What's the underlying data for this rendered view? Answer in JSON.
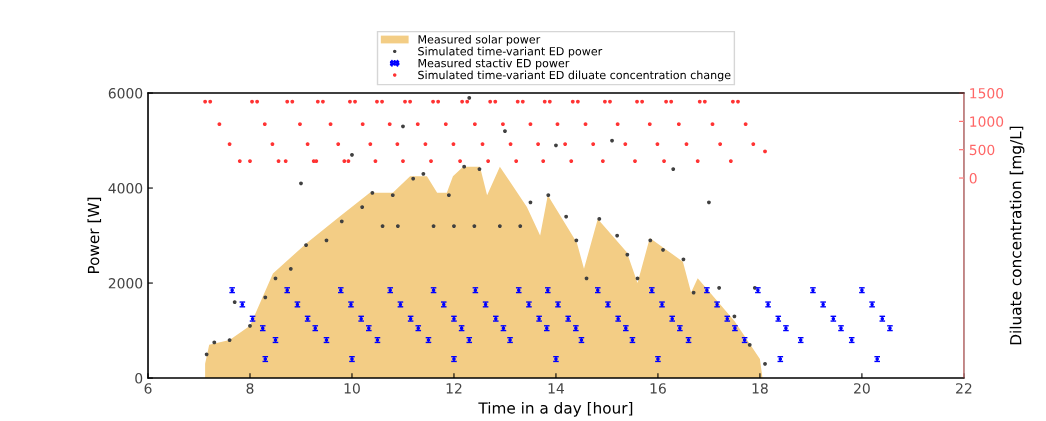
{
  "chart_data": {
    "type": "scatter",
    "xlabel": "Time in a day [hour]",
    "ylabel": "Power [W]",
    "y2label": "Diluate concentration [mg/L]",
    "xlim": [
      6,
      22
    ],
    "xticks": [
      6,
      8,
      10,
      12,
      14,
      16,
      18,
      20,
      22
    ],
    "ylim": [
      0,
      6000
    ],
    "yticks": [
      0,
      2000,
      4000,
      6000
    ],
    "y2lim": [
      -3530,
      1500
    ],
    "y2ticks": [
      0,
      500,
      1000,
      1500
    ],
    "grid": false,
    "legend": "top",
    "series": [
      {
        "name": "Measured solar power",
        "type": "area",
        "color": "#f3cd85",
        "x": [
          7.12,
          7.2,
          7.6,
          8.0,
          8.45,
          9.12,
          9.76,
          10.35,
          10.8,
          11.14,
          11.47,
          11.67,
          11.86,
          11.98,
          12.18,
          12.51,
          12.65,
          12.9,
          13.43,
          13.69,
          13.84,
          14.41,
          14.55,
          14.82,
          15.39,
          15.6,
          15.84,
          16.49,
          16.65,
          16.78,
          17.5,
          18.0,
          18.05
        ],
        "values": [
          300,
          700,
          800,
          1100,
          2200,
          2850,
          3400,
          3900,
          3900,
          4250,
          4250,
          3900,
          3900,
          4250,
          4450,
          4450,
          3850,
          4450,
          3600,
          3000,
          3850,
          2850,
          2300,
          3350,
          2650,
          2000,
          2950,
          2450,
          1800,
          2100,
          1200,
          400,
          0
        ]
      },
      {
        "name": "Simulated time-variant ED power",
        "marker": "circle",
        "color": "#404040",
        "x": [
          7.15,
          7.3,
          7.6,
          7.7,
          8.0,
          8.3,
          8.5,
          8.8,
          9.0,
          9.1,
          9.5,
          9.8,
          10.0,
          10.2,
          10.4,
          10.6,
          10.8,
          10.9,
          11.0,
          11.2,
          11.4,
          11.6,
          11.9,
          12.0,
          12.2,
          12.3,
          12.4,
          12.5,
          12.9,
          13.0,
          13.3,
          13.5,
          13.85,
          14.0,
          14.2,
          14.4,
          14.6,
          14.85,
          15.1,
          15.2,
          15.4,
          15.6,
          15.85,
          16.1,
          16.3,
          16.5,
          16.7,
          17.0,
          17.2,
          17.5,
          17.8,
          17.9,
          18.1
        ],
        "values": [
          500,
          750,
          800,
          1600,
          1100,
          1700,
          2100,
          2300,
          4100,
          2800,
          2900,
          3300,
          4700,
          3600,
          3900,
          3200,
          3850,
          3200,
          5300,
          4200,
          4300,
          3200,
          3850,
          3200,
          4450,
          5900,
          3200,
          4400,
          3200,
          5200,
          3200,
          3700,
          3850,
          4900,
          3400,
          2900,
          2100,
          3350,
          5000,
          3000,
          2600,
          2100,
          2900,
          2700,
          4400,
          2500,
          1800,
          3700,
          1900,
          1300,
          700,
          1900,
          300
        ]
      },
      {
        "name": "Measured stactiv ED power",
        "marker": "circle",
        "color": "#0000ff",
        "x": [
          7.65,
          7.85,
          8.05,
          8.25,
          8.73,
          8.93,
          9.13,
          9.28,
          9.78,
          9.98,
          10.18,
          10.33,
          10.75,
          10.95,
          11.15,
          11.3,
          11.6,
          11.8,
          12.0,
          12.15,
          12.42,
          12.62,
          12.82,
          12.97,
          13.27,
          13.47,
          13.67,
          13.82,
          13.84,
          14.04,
          14.24,
          14.39,
          14.82,
          15.02,
          15.22,
          15.37,
          15.88,
          16.08,
          16.28,
          16.43,
          16.96,
          17.16,
          17.36,
          17.51,
          17.96,
          18.16,
          18.36,
          18.51,
          19.04,
          19.24,
          19.44,
          19.59,
          20.0,
          20.2,
          20.4,
          20.55,
          8.5,
          9.5,
          10.5,
          11.5,
          12.3,
          13.1,
          14.5,
          15.5,
          16.6,
          17.7,
          18.8,
          19.8,
          8.3,
          10.0,
          12.0,
          14.0,
          16.0,
          18.4,
          20.3
        ],
        "values": [
          1850,
          1550,
          1250,
          1050,
          1850,
          1550,
          1250,
          1050,
          1850,
          1550,
          1250,
          1050,
          1850,
          1550,
          1250,
          1050,
          1850,
          1550,
          1250,
          1050,
          1850,
          1550,
          1250,
          1050,
          1850,
          1550,
          1250,
          1050,
          1850,
          1550,
          1250,
          1050,
          1850,
          1550,
          1250,
          1050,
          1850,
          1550,
          1250,
          1050,
          1850,
          1550,
          1250,
          1050,
          1850,
          1550,
          1250,
          1050,
          1850,
          1550,
          1250,
          1050,
          1850,
          1550,
          1250,
          1050,
          800,
          800,
          800,
          800,
          800,
          800,
          800,
          800,
          800,
          800,
          800,
          800,
          400,
          400,
          400,
          400,
          400,
          400,
          400
        ],
        "errors": [
          50,
          50,
          50,
          50,
          50,
          50,
          50,
          50,
          50,
          50,
          50,
          50,
          50,
          50,
          50,
          50,
          50,
          50,
          50,
          50,
          50,
          50,
          50,
          50,
          50,
          50,
          50,
          50,
          50,
          50,
          50,
          50,
          50,
          50,
          50,
          50,
          50,
          50,
          50,
          50,
          50,
          50,
          50,
          50,
          50,
          50,
          50,
          50,
          50,
          50,
          50,
          50,
          50,
          50,
          50,
          50,
          50,
          50,
          50,
          50,
          50,
          50,
          50,
          50,
          50,
          50,
          50,
          50,
          50,
          50,
          50,
          50,
          50,
          50,
          50
        ]
      },
      {
        "name": "Simulated time-variant ED diluate concentration change",
        "marker": "circle",
        "axis": "y2",
        "color": "#ff3333",
        "x": [
          7.12,
          7.22,
          7.4,
          7.6,
          7.8,
          8.0,
          8.04,
          8.14,
          8.29,
          8.44,
          8.56,
          8.7,
          8.73,
          8.83,
          8.98,
          9.13,
          9.25,
          9.3,
          9.33,
          9.43,
          9.58,
          9.73,
          9.85,
          9.93,
          9.96,
          10.06,
          10.21,
          10.36,
          10.46,
          10.49,
          10.59,
          10.74,
          10.89,
          11.0,
          11.04,
          11.14,
          11.29,
          11.44,
          11.55,
          11.59,
          11.69,
          11.84,
          11.99,
          12.12,
          12.16,
          12.26,
          12.41,
          12.56,
          12.67,
          12.71,
          12.81,
          12.96,
          13.11,
          13.22,
          13.25,
          13.35,
          13.5,
          13.65,
          13.75,
          13.78,
          13.88,
          14.03,
          14.18,
          14.3,
          14.33,
          14.43,
          14.58,
          14.73,
          14.92,
          14.96,
          15.06,
          15.21,
          15.36,
          15.55,
          15.59,
          15.69,
          15.84,
          15.99,
          16.12,
          16.16,
          16.26,
          16.41,
          16.56,
          16.78,
          16.82,
          16.92,
          17.07,
          17.22,
          17.43,
          17.47,
          17.57,
          17.72,
          17.87,
          18.1
        ],
        "values": [
          1350,
          1350,
          950,
          600,
          300,
          300,
          1350,
          1350,
          950,
          600,
          300,
          300,
          1350,
          1350,
          950,
          600,
          300,
          300,
          1350,
          1350,
          950,
          600,
          300,
          300,
          1350,
          1350,
          950,
          600,
          300,
          1350,
          1350,
          950,
          600,
          300,
          1350,
          1350,
          950,
          600,
          300,
          1350,
          1350,
          950,
          600,
          300,
          1350,
          1350,
          950,
          600,
          300,
          1350,
          1350,
          950,
          600,
          300,
          1350,
          1350,
          950,
          600,
          300,
          1350,
          1350,
          950,
          600,
          300,
          1350,
          1350,
          950,
          600,
          300,
          1350,
          1350,
          950,
          600,
          300,
          1350,
          1350,
          950,
          600,
          300,
          1350,
          1350,
          950,
          600,
          300,
          1350,
          1350,
          950,
          600,
          300,
          1350,
          1350,
          950,
          600,
          470
        ]
      }
    ]
  }
}
